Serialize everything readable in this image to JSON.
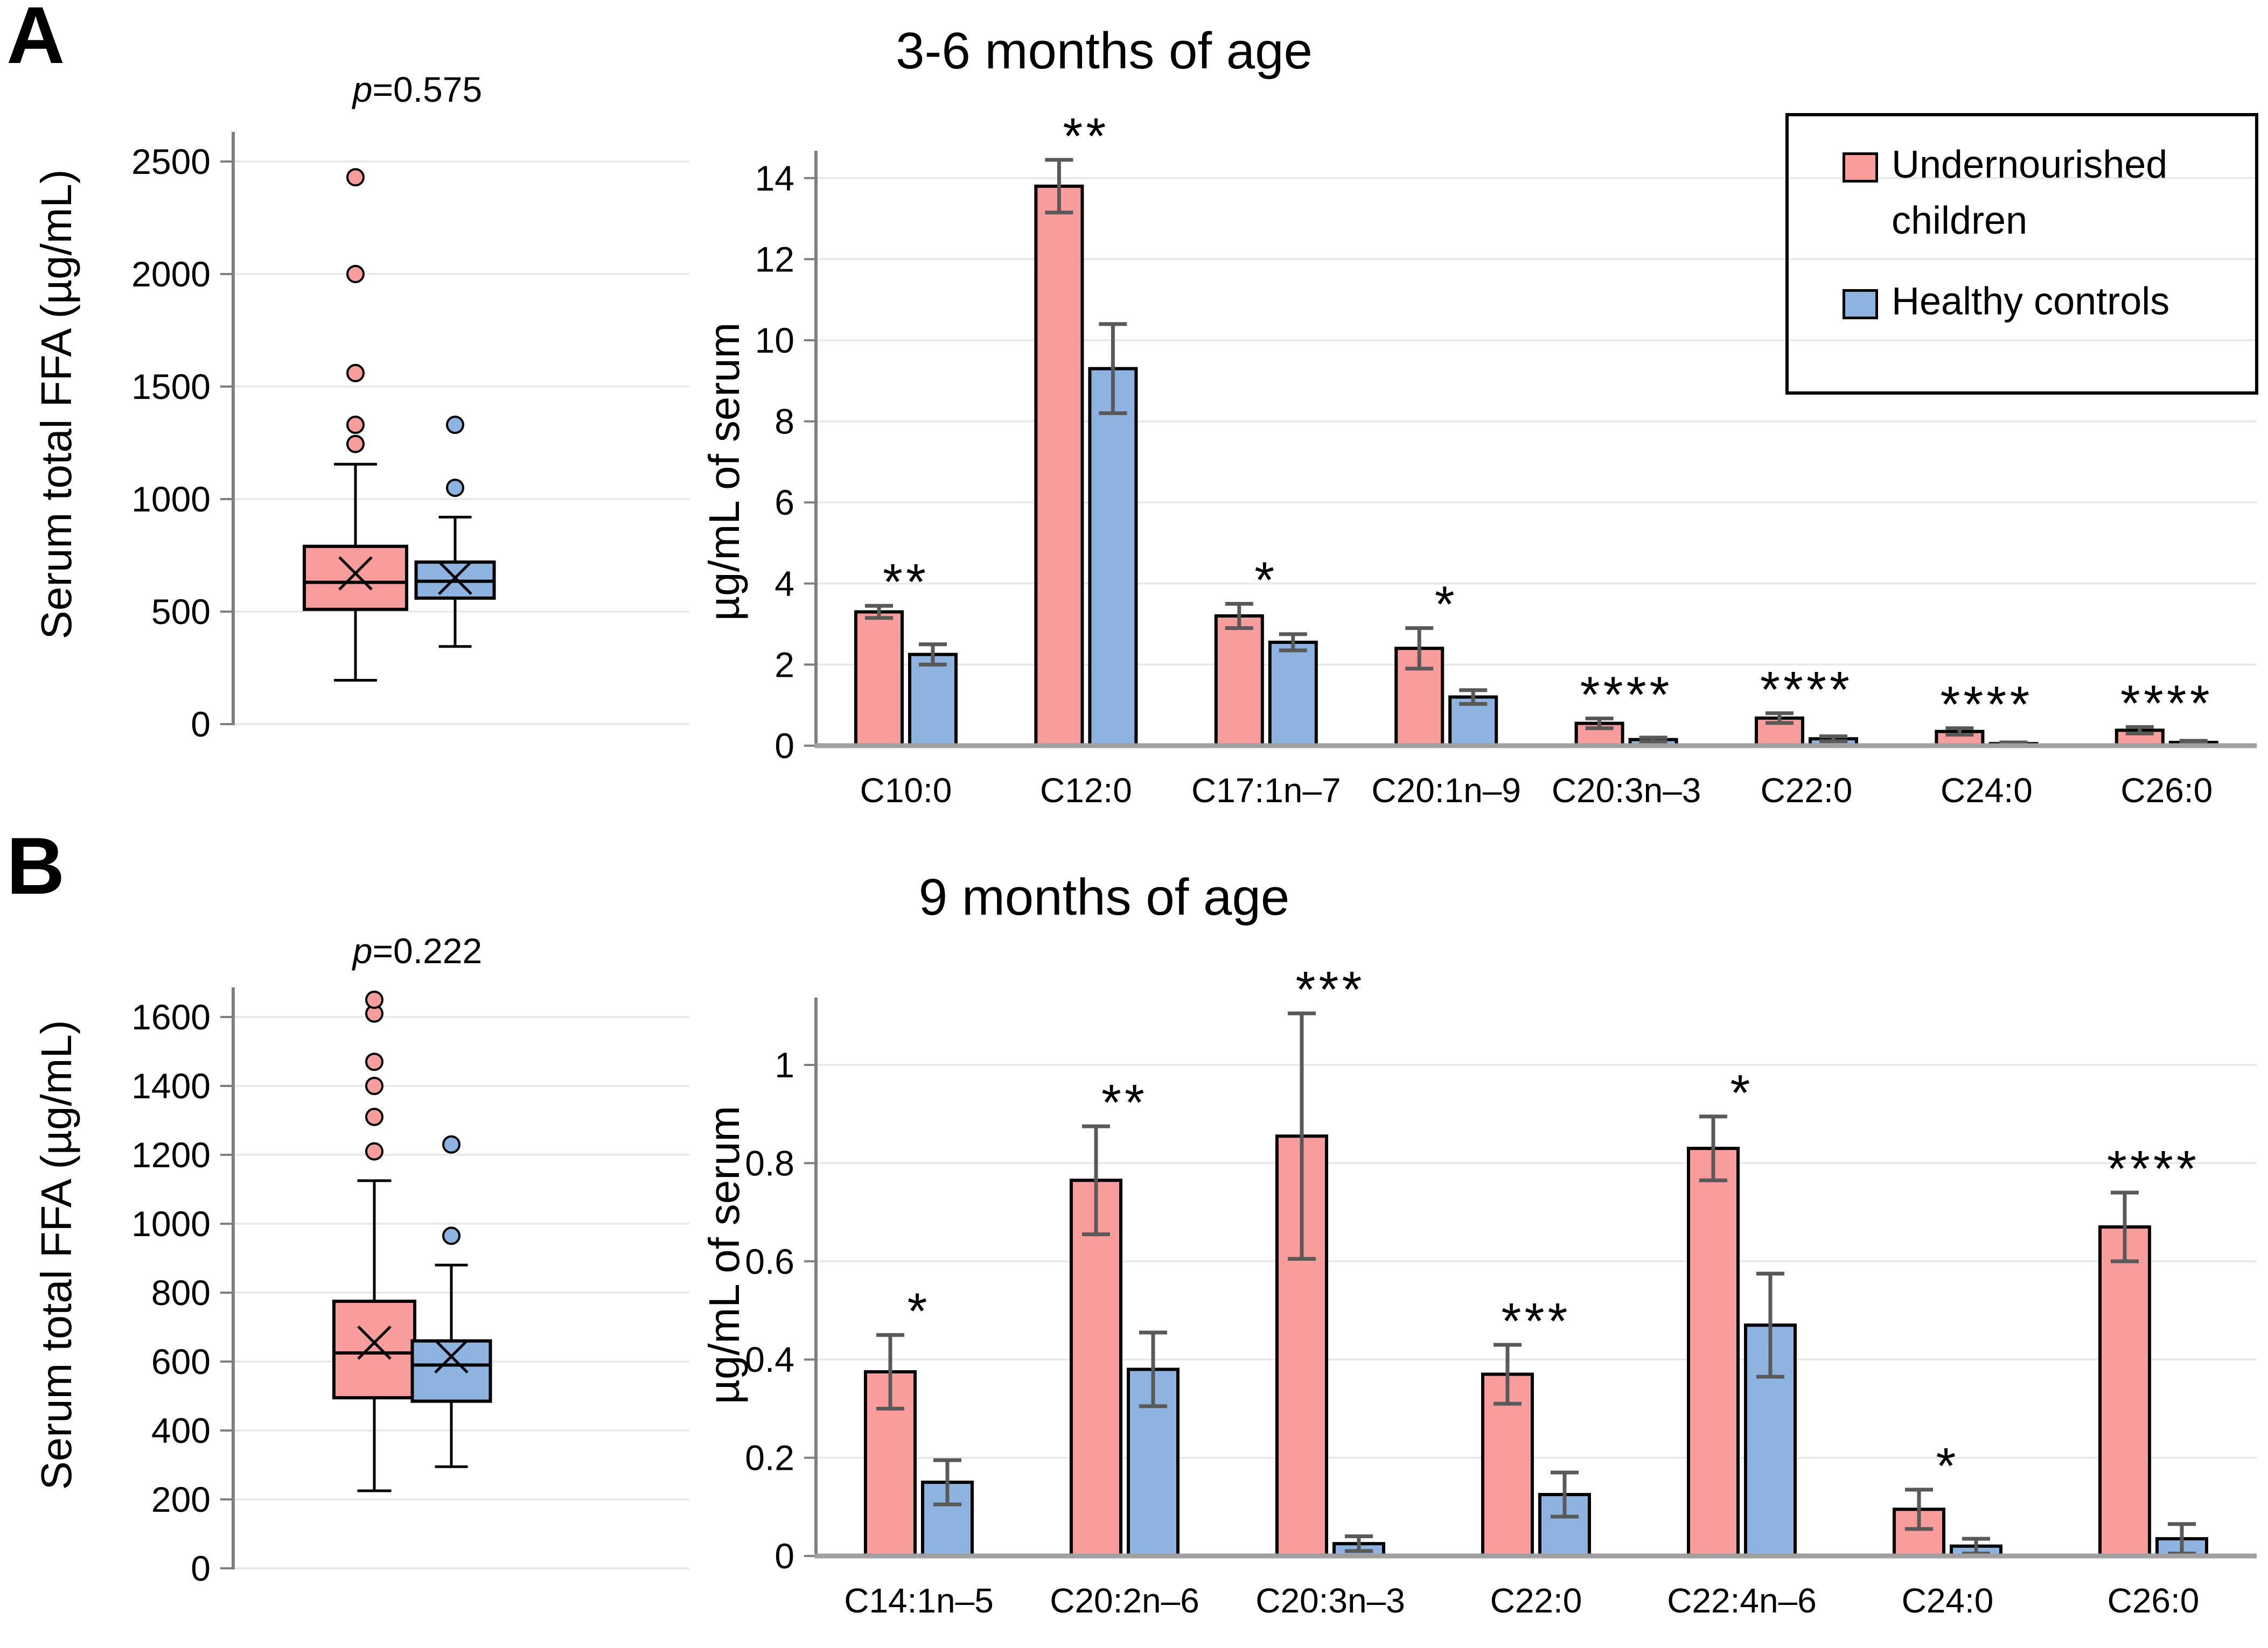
{
  "page": {
    "background": "#FFFFFF"
  },
  "colors": {
    "undernourished": "#F89C9C",
    "healthy": "#8DB3E0",
    "error_bar": "#595959",
    "axis": "#7F7F7F",
    "baseline": "#A0A0A0",
    "gridline": "#E7E7E7",
    "box_border": "#000000"
  },
  "panels": [
    {
      "letter": "A",
      "p_italic": "p",
      "p_rest": "=0.575"
    },
    {
      "letter": "B",
      "p_italic": "p",
      "p_rest": "=0.222"
    }
  ],
  "legend": {
    "position": "top-right",
    "items": [
      {
        "label": "Undernourished children",
        "color": "#F89C9C"
      },
      {
        "label": "Healthy controls",
        "color": "#8DB3E0"
      }
    ]
  },
  "chart_data": [
    {
      "id": "box-a",
      "type": "box",
      "panel": "A",
      "p_label": "p=0.575",
      "ylabel": "Serum total FFA (µg/mL)",
      "ylim": [
        0,
        2500
      ],
      "yticks": [
        0,
        500,
        1000,
        1500,
        2000,
        2500
      ],
      "ytick_labels": [
        "0",
        "500",
        "1000",
        "1500",
        "2000",
        "2500"
      ],
      "grid": true,
      "series": [
        {
          "name": "Undernourished children",
          "min": 195,
          "q1": 510,
          "median": 630,
          "q3": 790,
          "max": 1155,
          "mean": 670,
          "outliers": [
            1245,
            1330,
            1560,
            2000,
            2430
          ]
        },
        {
          "name": "Healthy controls",
          "min": 345,
          "q1": 560,
          "median": 635,
          "q3": 720,
          "max": 920,
          "mean": 650,
          "outliers": [
            1050,
            1330
          ]
        }
      ]
    },
    {
      "id": "bar-a",
      "type": "bar",
      "panel": "A",
      "title": "3-6 months of age",
      "ylabel": "µg/mL of serum",
      "xlabel": "",
      "ylim": [
        0,
        14
      ],
      "yticks": [
        0,
        2,
        4,
        6,
        8,
        10,
        12,
        14
      ],
      "ytick_labels": [
        "0",
        "2",
        "4",
        "6",
        "8",
        "10",
        "12",
        "14"
      ],
      "grid": true,
      "legend_position": "top-right",
      "categories": [
        "C10:0",
        "C12:0",
        "C17:1n–7",
        "C20:1n–9",
        "C20:3n–3",
        "C22:0",
        "C24:0",
        "C26:0"
      ],
      "significance": [
        "**",
        "**",
        "*",
        "*",
        "****",
        "****",
        "****",
        "****"
      ],
      "series": [
        {
          "name": "Undernourished children",
          "values": [
            3.3,
            13.8,
            3.2,
            2.4,
            0.55,
            0.68,
            0.35,
            0.38
          ],
          "errors": [
            0.15,
            0.65,
            0.3,
            0.5,
            0.12,
            0.12,
            0.08,
            0.08
          ]
        },
        {
          "name": "Healthy controls",
          "values": [
            2.25,
            9.3,
            2.55,
            1.2,
            0.15,
            0.17,
            0.05,
            0.08
          ],
          "errors": [
            0.25,
            1.1,
            0.2,
            0.17,
            0.05,
            0.06,
            0.03,
            0.04
          ]
        }
      ]
    },
    {
      "id": "box-b",
      "type": "box",
      "panel": "B",
      "p_label": "p=0.222",
      "ylabel": "Serum total FFA (µg/mL)",
      "ylim": [
        0,
        1600
      ],
      "yticks": [
        0,
        200,
        400,
        600,
        800,
        1000,
        1200,
        1400,
        1600
      ],
      "ytick_labels": [
        "0",
        "200",
        "400",
        "600",
        "800",
        "1000",
        "1200",
        "1400",
        "1600"
      ],
      "grid": true,
      "series": [
        {
          "name": "Undernourished children",
          "min": 225,
          "q1": 495,
          "median": 625,
          "q3": 775,
          "max": 1125,
          "mean": 655,
          "outliers": [
            1210,
            1310,
            1400,
            1470,
            1610,
            1650
          ]
        },
        {
          "name": "Healthy controls",
          "min": 295,
          "q1": 485,
          "median": 590,
          "q3": 660,
          "max": 880,
          "mean": 615,
          "outliers": [
            965,
            1230
          ]
        }
      ]
    },
    {
      "id": "bar-b",
      "type": "bar",
      "panel": "B",
      "title": "9 months of age",
      "ylabel": "µg/mL of serum",
      "xlabel": "",
      "ylim": [
        0,
        1
      ],
      "yticks": [
        0,
        0.2,
        0.4,
        0.6,
        0.8,
        1
      ],
      "ytick_labels": [
        "0",
        "0.2",
        "0.4",
        "0.6",
        "0.8",
        "1"
      ],
      "grid": true,
      "categories": [
        "C14:1n–5",
        "C20:2n–6",
        "C20:3n–3",
        "C22:0",
        "C22:4n–6",
        "C24:0",
        "C26:0"
      ],
      "significance": [
        "*",
        "**",
        "***",
        "***",
        "*",
        "*",
        "****"
      ],
      "series": [
        {
          "name": "Undernourished children",
          "values": [
            0.375,
            0.765,
            0.855,
            0.37,
            0.83,
            0.095,
            0.67
          ],
          "errors": [
            0.075,
            0.11,
            0.25,
            0.06,
            0.065,
            0.04,
            0.07
          ]
        },
        {
          "name": "Healthy controls",
          "values": [
            0.15,
            0.38,
            0.025,
            0.125,
            0.47,
            0.02,
            0.035
          ],
          "errors": [
            0.045,
            0.075,
            0.015,
            0.045,
            0.105,
            0.015,
            0.03
          ]
        }
      ]
    }
  ]
}
